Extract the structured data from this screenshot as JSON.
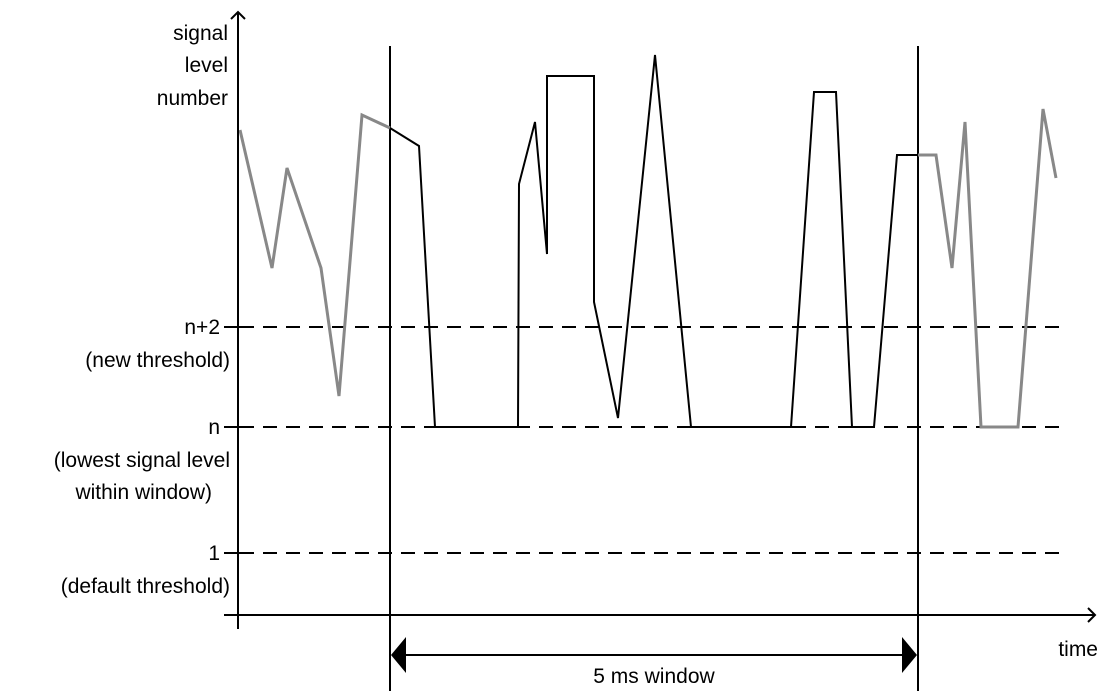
{
  "axes": {
    "y_label_lines": [
      "signal",
      "level",
      "number"
    ],
    "x_label": "time"
  },
  "levels": [
    {
      "tick": "n+2",
      "caption_lines": [
        "(new threshold)"
      ]
    },
    {
      "tick": "n",
      "caption_lines": [
        "(lowest signal level",
        "within window)"
      ]
    },
    {
      "tick": "1",
      "caption_lines": [
        "(default threshold)"
      ]
    }
  ],
  "window": {
    "label": "5 ms window"
  },
  "colors": {
    "axis": "#000000",
    "signal_inside_window": "#000000",
    "signal_outside_window": "#888888",
    "threshold_dash": "#000000"
  }
}
